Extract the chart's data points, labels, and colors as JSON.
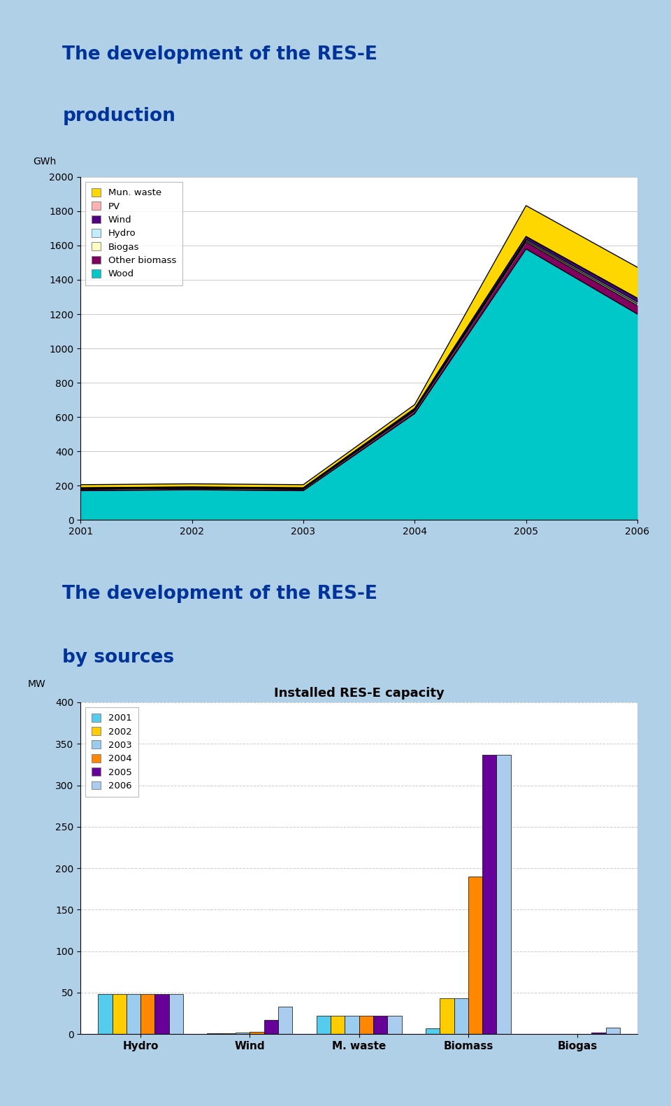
{
  "chart1": {
    "title1": "The development of the RES-E",
    "title2": "production",
    "ylabel": "GWh",
    "years": [
      2001,
      2002,
      2003,
      2004,
      2005,
      2006
    ],
    "ylim": [
      0,
      2000
    ],
    "series": {
      "Wood": [
        170,
        175,
        170,
        620,
        1580,
        1200
      ],
      "Other_biomass": [
        8,
        8,
        8,
        15,
        40,
        50
      ],
      "Biogas": [
        3,
        3,
        3,
        5,
        8,
        10
      ],
      "Hydro": [
        3,
        3,
        3,
        5,
        8,
        10
      ],
      "Wind": [
        2,
        2,
        2,
        4,
        15,
        20
      ],
      "PV": [
        1,
        1,
        1,
        1,
        2,
        3
      ],
      "Mun_waste": [
        18,
        18,
        18,
        22,
        180,
        180
      ]
    },
    "colors": {
      "Wood": "#00C8C8",
      "Other_biomass": "#800060",
      "Biogas": "#FFFFC0",
      "Hydro": "#C0EEFF",
      "Wind": "#500080",
      "PV": "#FFB0B0",
      "Mun_waste": "#FFD700"
    },
    "legend_labels": [
      "Mun. waste",
      "PV",
      "Wind",
      "Hydro",
      "Biogas",
      "Other biomass",
      "Wood"
    ],
    "legend_colors": [
      "#FFD700",
      "#FFB0B0",
      "#500080",
      "#C0EEFF",
      "#FFFFC0",
      "#800060",
      "#00C8C8"
    ],
    "bg_color": "#FFFFFF",
    "title_color": "#003399",
    "slide_bg": "#C8E8F8"
  },
  "chart2": {
    "title1": "The development of the RES-E",
    "title2": "by sources",
    "chart_title": "Installed RES-E capacity",
    "ylabel": "MW",
    "ylim": [
      0,
      400
    ],
    "yticks": [
      0,
      50,
      100,
      150,
      200,
      250,
      300,
      350,
      400
    ],
    "categories": [
      "Hydro",
      "Wind",
      "M. waste",
      "Biomass",
      "Biogas"
    ],
    "years": [
      "2001",
      "2002",
      "2003",
      "2004",
      "2005",
      "2006"
    ],
    "year_colors": [
      "#55CCEE",
      "#FFCC00",
      "#99CCEE",
      "#FF8800",
      "#660099",
      "#AACCEE"
    ],
    "data": {
      "Hydro": [
        48,
        48,
        48,
        48,
        48,
        48
      ],
      "Wind": [
        1,
        1,
        2,
        3,
        17,
        33
      ],
      "M. waste": [
        22,
        22,
        22,
        22,
        22,
        22
      ],
      "Biomass": [
        7,
        43,
        43,
        190,
        337,
        337
      ],
      "Biogas": [
        0,
        0,
        0,
        0,
        2,
        8
      ]
    },
    "bg_color": "#FFFFFF",
    "title_color": "#003399",
    "slide_bg": "#C8E8F8"
  },
  "outer_bg": "#B0D0E8",
  "slide_border": "#4080C0"
}
